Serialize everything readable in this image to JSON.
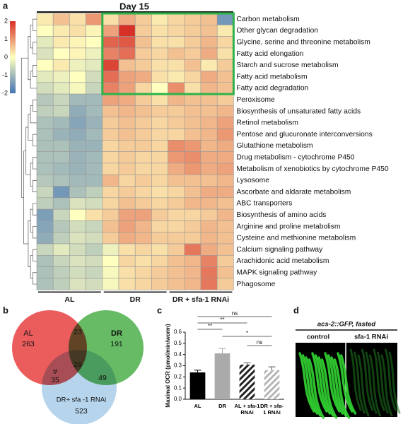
{
  "panel_labels": [
    "a",
    "b",
    "c",
    "d"
  ],
  "chart_data": [
    {
      "type": "heatmap",
      "title": "Day 15",
      "rows": [
        "Carbon metabolism",
        "Other glycan degradation",
        "Glycine, serine and threonine metabolism",
        "Fatty acid elongation",
        "Starch and sucrose metabolism",
        "Fatty acid metabolism",
        "Fatty acid degradation",
        "Peroxisome",
        "Biosynthesis of unsaturated fatty acids",
        "Retinol metabolism",
        "Pentose and glucuronate interconversions",
        "Glutathione metabolism",
        "Drug metabolism - cytochrome P450",
        "Metabolism of xenobiotics by cytochrome P450",
        "Lysosome",
        "Ascorbate and aldarate metabolism",
        "ABC transporters",
        "Biosynthesis of amino acids",
        "Arginine and proline metabolism",
        "Cysteine and methionine metabolism",
        "Calcium signaling pathway",
        "Arachidonic acid metabolism",
        "MAPK signaling pathway",
        "Phagosome"
      ],
      "groups": [
        {
          "name": "AL",
          "span": 4
        },
        {
          "name": "DR",
          "span": 4
        },
        {
          "name": "DR + sfa-1 RNAi",
          "span": 4
        }
      ],
      "values": [
        [
          0.2,
          0.6,
          0.3,
          1.0,
          0.3,
          0.8,
          0.5,
          0.2,
          0.4,
          0.5,
          0.6,
          -1.5
        ],
        [
          0.0,
          0.2,
          0.3,
          0.1,
          0.9,
          2.0,
          0.5,
          0.3,
          0.4,
          0.5,
          0.6,
          0.2
        ],
        [
          -0.3,
          0.2,
          0.1,
          0.0,
          1.5,
          1.6,
          0.6,
          0.3,
          0.3,
          0.5,
          0.7,
          0.4
        ],
        [
          -0.4,
          0.0,
          0.1,
          -0.2,
          1.2,
          1.4,
          0.5,
          0.4,
          0.6,
          0.5,
          0.8,
          0.3
        ],
        [
          0.0,
          0.2,
          -0.2,
          -0.3,
          1.8,
          0.6,
          0.5,
          0.3,
          0.3,
          0.6,
          0.2,
          0.5
        ],
        [
          -0.3,
          -0.2,
          0.0,
          -0.5,
          1.4,
          0.9,
          0.8,
          0.3,
          0.2,
          0.4,
          0.8,
          0.6
        ],
        [
          -0.5,
          -0.3,
          -0.1,
          -0.6,
          1.2,
          0.9,
          0.4,
          0.0,
          1.1,
          0.3,
          0.7,
          0.6
        ],
        [
          -0.8,
          -0.6,
          -1.0,
          -1.0,
          0.9,
          0.8,
          0.5,
          0.3,
          0.7,
          0.6,
          0.6,
          0.5
        ],
        [
          -0.7,
          -0.6,
          -1.2,
          -1.0,
          0.6,
          0.7,
          0.6,
          0.5,
          0.5,
          0.6,
          0.6,
          0.7
        ],
        [
          -0.9,
          -1.0,
          -1.3,
          -1.1,
          0.5,
          0.6,
          0.5,
          0.4,
          0.5,
          0.6,
          0.7,
          0.9
        ],
        [
          -0.9,
          -1.1,
          -1.2,
          -1.0,
          0.5,
          0.6,
          0.5,
          0.4,
          0.4,
          0.6,
          0.7,
          1.0
        ],
        [
          -0.9,
          -0.9,
          -1.1,
          -1.1,
          0.4,
          0.5,
          0.5,
          0.4,
          1.1,
          1.0,
          0.7,
          0.8
        ],
        [
          -0.9,
          -0.9,
          -1.1,
          -1.0,
          0.4,
          0.5,
          0.4,
          0.4,
          1.0,
          1.1,
          0.8,
          0.8
        ],
        [
          -0.9,
          -1.0,
          -1.1,
          -1.0,
          0.4,
          0.5,
          0.4,
          0.4,
          0.8,
          1.0,
          0.8,
          0.9
        ],
        [
          -0.8,
          -0.9,
          -1.0,
          -1.0,
          0.7,
          0.4,
          0.5,
          0.4,
          0.6,
          0.6,
          0.6,
          0.7
        ],
        [
          -0.6,
          -1.5,
          -0.9,
          -0.7,
          0.4,
          0.5,
          0.4,
          0.3,
          0.4,
          0.6,
          0.8,
          0.8
        ],
        [
          -0.7,
          -0.9,
          -0.4,
          -0.5,
          0.4,
          0.6,
          0.5,
          0.4,
          0.5,
          0.7,
          0.7,
          0.6
        ],
        [
          -1.4,
          -0.6,
          0.0,
          0.3,
          0.5,
          0.9,
          0.9,
          0.5,
          0.4,
          0.4,
          0.5,
          0.7
        ],
        [
          -1.3,
          -0.8,
          -0.5,
          -0.6,
          0.6,
          0.9,
          0.7,
          0.4,
          0.4,
          0.5,
          0.7,
          0.6
        ],
        [
          -1.2,
          -0.7,
          -0.4,
          -0.5,
          0.5,
          0.8,
          0.7,
          0.5,
          0.5,
          0.5,
          0.7,
          0.6
        ],
        [
          -0.6,
          -0.3,
          -0.5,
          -0.7,
          -0.2,
          0.3,
          0.4,
          0.3,
          0.5,
          1.3,
          0.8,
          0.6
        ],
        [
          -0.9,
          -0.6,
          -0.4,
          -0.5,
          0.0,
          0.4,
          0.3,
          0.4,
          0.6,
          0.7,
          1.2,
          0.5
        ],
        [
          -0.9,
          -0.7,
          -0.5,
          -0.6,
          -0.1,
          0.3,
          0.4,
          0.5,
          0.6,
          0.7,
          1.3,
          0.6
        ],
        [
          -0.9,
          -0.7,
          -0.4,
          -0.5,
          -0.1,
          0.3,
          0.4,
          0.5,
          0.6,
          0.7,
          1.3,
          0.5
        ]
      ],
      "colorscale": [
        "#4575b4",
        "#ffffbf",
        "#d73027"
      ],
      "clim": [
        -2,
        2
      ],
      "cticks": [
        2,
        1,
        0,
        -1,
        -2
      ],
      "highlight": {
        "rows": [
          0,
          6
        ],
        "cols": [
          4,
          11
        ],
        "color": "#2db34a"
      }
    },
    {
      "type": "venn",
      "sets": [
        {
          "name": "AL",
          "color": "#e8403f",
          "value": 263
        },
        {
          "name": "DR",
          "color": "#4daf4a",
          "value": 191
        },
        {
          "name": "DR+ sfa -1 RNAi",
          "color": "#a9cde9",
          "value": 523
        }
      ],
      "overlaps": [
        {
          "sets": [
            0,
            1
          ],
          "value": 23
        },
        {
          "sets": [
            0,
            2
          ],
          "value": 35,
          "note": "#"
        },
        {
          "sets": [
            1,
            2
          ],
          "value": 49
        },
        {
          "sets": [
            0,
            1,
            2
          ],
          "value": 26
        }
      ]
    },
    {
      "type": "bar",
      "ylabel": "Maximal OCR (pmol/min/worm)",
      "categories": [
        "AL",
        "DR",
        "AL + sfa-1 RNAi",
        "DR + sfa-1 RNAi"
      ],
      "values": [
        0.24,
        0.41,
        0.31,
        0.26
      ],
      "errors": [
        0.02,
        0.045,
        0.015,
        0.03
      ],
      "colors": [
        "#000000",
        "#aaaaaa",
        "#222222",
        "#b5b5b5"
      ],
      "hatch": [
        false,
        false,
        true,
        true
      ],
      "ylim": [
        0,
        0.6
      ],
      "yticks": [
        {
          "value": 0,
          "label": "0.0"
        },
        0.1,
        0.2,
        0.3,
        0.4,
        0.5,
        0.6
      ],
      "significance": [
        {
          "from": 0,
          "to": 3,
          "label": "ns"
        },
        {
          "from": 0,
          "to": 2,
          "label": "**"
        },
        {
          "from": 0,
          "to": 1,
          "label": "**"
        },
        {
          "from": 1,
          "to": 3,
          "label": "*"
        },
        {
          "from": 2,
          "to": 3,
          "label": "ns"
        }
      ]
    }
  ],
  "image_panel": {
    "title": "acs-2::GFP, fasted",
    "labels": [
      "control",
      "sfa-1 RNAi"
    ]
  }
}
